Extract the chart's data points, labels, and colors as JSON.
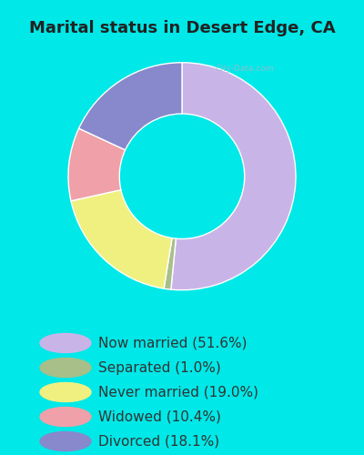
{
  "title": "Marital status in Desert Edge, CA",
  "slices": [
    51.6,
    1.0,
    19.0,
    10.4,
    18.1
  ],
  "labels": [
    "Now married (51.6%)",
    "Separated (1.0%)",
    "Never married (19.0%)",
    "Widowed (10.4%)",
    "Divorced (18.1%)"
  ],
  "colors": [
    "#c9b4e8",
    "#a8bf8a",
    "#f0f080",
    "#f0a0a8",
    "#8888cc"
  ],
  "background_outer": "#00e8e8",
  "background_chart": "#e0f0e8",
  "title_fontsize": 13,
  "legend_fontsize": 11,
  "donut_width": 0.45,
  "start_angle": 90,
  "title_color": "#222222",
  "watermark_color": "#99bbcc",
  "legend_text_color": "#333333"
}
